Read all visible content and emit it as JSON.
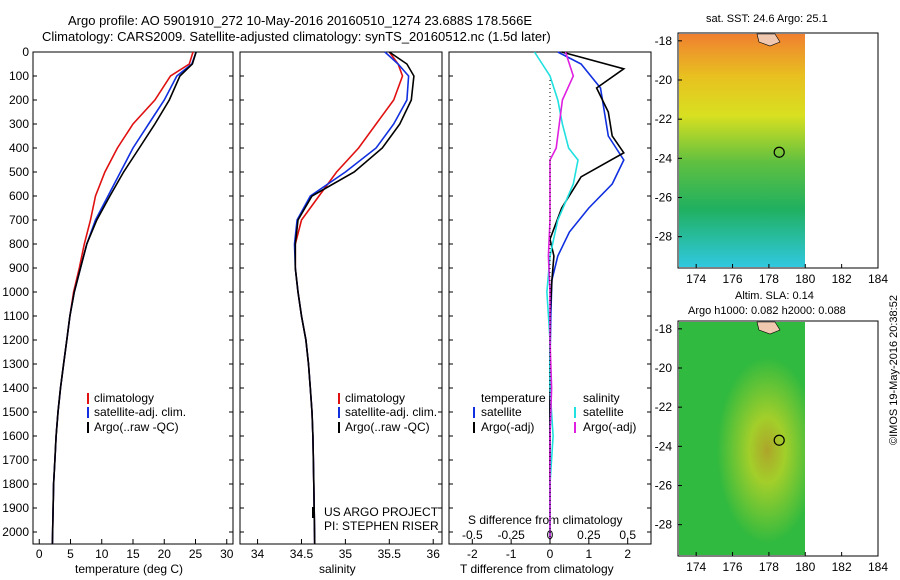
{
  "header": {
    "line1": "Argo profile: AO 5901910_272 10-May-2016 20160510_1274 23.688S 178.566E",
    "line2": "Climatology: CARS2009. Satellite-adjusted climatology: synTS_20160512.nc (1.5d later)"
  },
  "colors": {
    "climatology": "#e01010",
    "satellite": "#1030e0",
    "argo": "#000000",
    "sal_satellite": "#20e0e0",
    "sal_argo": "#e020e0"
  },
  "depth_axis": {
    "range": [
      0,
      2050
    ],
    "ticks": [
      0,
      100,
      200,
      300,
      400,
      500,
      600,
      700,
      800,
      900,
      1000,
      1100,
      1200,
      1300,
      1400,
      1500,
      1600,
      1700,
      1800,
      1900,
      2000
    ]
  },
  "temp_panel": {
    "xlabel": "temperature (deg C)",
    "xticks": [
      "0",
      "5",
      "10",
      "15",
      "20",
      "25",
      "30"
    ],
    "legend": [
      "climatology",
      "satellite-adj. clim.",
      "Argo(..raw -QC)"
    ]
  },
  "sal_panel": {
    "xlabel": "salinity",
    "xticks": [
      "34",
      "34.5",
      "35",
      "35.5",
      "36"
    ],
    "legend": [
      "climatology",
      "satellite-adj. clim.",
      "Argo(..raw -QC)"
    ],
    "credit1": "US ARGO PROJECT",
    "credit2": "PI: STEPHEN RISER"
  },
  "diff_panel": {
    "xlabel": "T difference from climatology",
    "s_label": "S difference from climatology",
    "s_ticks": [
      "-0.5",
      "-0.25",
      "0",
      "0.25",
      "0.5"
    ],
    "t_ticks": [
      "-2",
      "-1",
      "0",
      "1",
      "2"
    ],
    "legend_temp_title": "temperature",
    "legend_sal_title": "salinity",
    "legend_temp": [
      "satellite",
      "Argo(-adj)"
    ],
    "legend_sal": [
      "satellite",
      "Argo(-adj)"
    ]
  },
  "maps": {
    "sst_title": "sat. SST: 24.6 Argo: 25.1",
    "sla_title1": "Altim. SLA: 0.14",
    "sla_title2": "Argo h1000: 0.082 h2000: 0.088",
    "xticks": [
      "174",
      "176",
      "178",
      "180",
      "182",
      "184"
    ],
    "yticks": [
      "-18",
      "-20",
      "-22",
      "-24",
      "-26",
      "-28"
    ],
    "float_position": {
      "lon": 178.566,
      "lat": -23.688
    }
  },
  "footer_stamp": "©IMOS 19-May-2016 20:38:52",
  "chart_data": [
    {
      "type": "line",
      "title": "",
      "xlabel": "temperature (deg C)",
      "ylabel": "",
      "xlim": [
        -1,
        31
      ],
      "ylim": [
        2050,
        0
      ],
      "series": [
        {
          "name": "climatology",
          "x": [
            24.6,
            24.0,
            21.0,
            18.5,
            15.0,
            12.5,
            10.5,
            9.0,
            8.2,
            7.2,
            6.4,
            5.5,
            4.9,
            4.4,
            3.9,
            3.4,
            3.0,
            2.7,
            2.5,
            2.3,
            2.1
          ],
          "y": [
            0,
            50,
            100,
            200,
            300,
            400,
            500,
            600,
            700,
            800,
            900,
            1000,
            1100,
            1200,
            1300,
            1400,
            1500,
            1600,
            1700,
            1800,
            2050
          ]
        },
        {
          "name": "satellite-adj. clim.",
          "x": [
            25.1,
            24.4,
            22.0,
            20.0,
            17.5,
            15.0,
            13.0,
            11.0,
            9.0,
            7.6,
            6.6,
            5.6,
            4.9,
            4.4,
            3.9,
            3.4,
            3.0,
            2.7,
            2.5,
            2.3,
            2.1
          ],
          "y": [
            0,
            50,
            100,
            200,
            300,
            400,
            500,
            600,
            700,
            800,
            900,
            1000,
            1100,
            1200,
            1300,
            1400,
            1500,
            1600,
            1700,
            1800,
            2050
          ]
        },
        {
          "name": "Argo(..raw -QC)",
          "x": [
            25.1,
            24.5,
            22.5,
            20.8,
            18.5,
            16.0,
            13.5,
            11.3,
            9.2,
            7.6,
            6.6,
            5.6,
            4.9,
            4.4,
            3.9,
            3.4,
            3.0,
            2.7,
            2.5,
            2.3,
            2.1
          ],
          "y": [
            0,
            50,
            100,
            200,
            300,
            400,
            500,
            600,
            700,
            800,
            900,
            1000,
            1100,
            1200,
            1300,
            1400,
            1500,
            1600,
            1700,
            1800,
            2050
          ]
        }
      ]
    },
    {
      "type": "line",
      "title": "",
      "xlabel": "salinity",
      "ylabel": "",
      "xlim": [
        33.8,
        36.1
      ],
      "ylim": [
        2050,
        0
      ],
      "series": [
        {
          "name": "climatology",
          "x": [
            35.5,
            35.6,
            35.65,
            35.55,
            35.35,
            35.15,
            34.9,
            34.7,
            34.5,
            34.43,
            34.43,
            34.46,
            34.5,
            34.55,
            34.58,
            34.6,
            34.62,
            34.63,
            34.64,
            34.65
          ],
          "y": [
            0,
            50,
            100,
            200,
            300,
            400,
            500,
            600,
            700,
            800,
            900,
            1000,
            1100,
            1200,
            1300,
            1400,
            1500,
            1600,
            1800,
            2050
          ]
        },
        {
          "name": "satellite-adj. clim.",
          "x": [
            35.45,
            35.6,
            35.72,
            35.7,
            35.55,
            35.35,
            35.0,
            34.6,
            34.45,
            34.42,
            34.43,
            34.46,
            34.5,
            34.55,
            34.58,
            34.6,
            34.62,
            34.63,
            34.64,
            34.65
          ],
          "y": [
            0,
            50,
            100,
            200,
            300,
            400,
            500,
            600,
            700,
            800,
            900,
            1000,
            1100,
            1200,
            1300,
            1400,
            1500,
            1600,
            1800,
            2050
          ]
        },
        {
          "name": "Argo(..raw -QC)",
          "x": [
            35.5,
            35.7,
            35.78,
            35.75,
            35.62,
            35.42,
            35.1,
            34.62,
            34.46,
            34.43,
            34.43,
            34.46,
            34.5,
            34.55,
            34.58,
            34.6,
            34.62,
            34.63,
            34.64,
            34.65
          ],
          "y": [
            0,
            50,
            100,
            200,
            300,
            400,
            500,
            600,
            700,
            800,
            900,
            1000,
            1100,
            1200,
            1300,
            1400,
            1500,
            1600,
            1800,
            2050
          ]
        }
      ]
    },
    {
      "type": "line",
      "title": "",
      "xlabel": "T difference from climatology",
      "ylabel": "",
      "xlim": [
        -2.6,
        2.6
      ],
      "ylim": [
        2050,
        0
      ],
      "series": [
        {
          "name": "satellite",
          "x": [
            0.2,
            0.8,
            1.3,
            1.4,
            1.5,
            1.9,
            1.6,
            1.0,
            0.5,
            0.2,
            0.05,
            0.02,
            0.0,
            0.0,
            0.0,
            0.0,
            0.0,
            0.0
          ],
          "y": [
            0,
            50,
            150,
            250,
            350,
            450,
            550,
            650,
            750,
            850,
            950,
            1100,
            1300,
            1500,
            1600,
            1700,
            1900,
            2030
          ]
        },
        {
          "name": "Argo(-adj)",
          "x": [
            0.3,
            1.9,
            1.2,
            1.5,
            1.6,
            1.9,
            0.8,
            0.3,
            0.0,
            0.1,
            0.05,
            0.0,
            0.0,
            0.0,
            0.0,
            0.0,
            0.0,
            0.0
          ],
          "y": [
            0,
            70,
            150,
            250,
            350,
            420,
            520,
            650,
            780,
            850,
            950,
            1100,
            1300,
            1500,
            1600,
            1700,
            1900,
            2030
          ]
        }
      ]
    },
    {
      "type": "line",
      "title": "",
      "xlabel": "S difference from climatology",
      "ylabel": "",
      "xlim": [
        -0.65,
        0.65
      ],
      "ylim": [
        2050,
        0
      ],
      "series": [
        {
          "name": "satellite",
          "x": [
            -0.1,
            0.0,
            0.05,
            0.08,
            0.12,
            0.18,
            0.15,
            0.05,
            0.0,
            -0.02,
            0.0,
            0.0,
            0.02,
            0.0,
            0.0,
            0.0
          ],
          "y": [
            0,
            100,
            200,
            300,
            400,
            450,
            550,
            700,
            850,
            1000,
            1200,
            1400,
            1600,
            1800,
            1900,
            2030
          ]
        },
        {
          "name": "Argo(-adj)",
          "x": [
            0.1,
            0.15,
            0.08,
            0.06,
            0.04,
            0.0,
            0.0,
            0.0,
            -0.01,
            0.0,
            0.0,
            0.01,
            0.0,
            0.0,
            0.0,
            0.0
          ],
          "y": [
            0,
            100,
            200,
            300,
            400,
            450,
            550,
            700,
            850,
            1000,
            1200,
            1400,
            1600,
            1800,
            1900,
            2030
          ]
        }
      ]
    }
  ]
}
